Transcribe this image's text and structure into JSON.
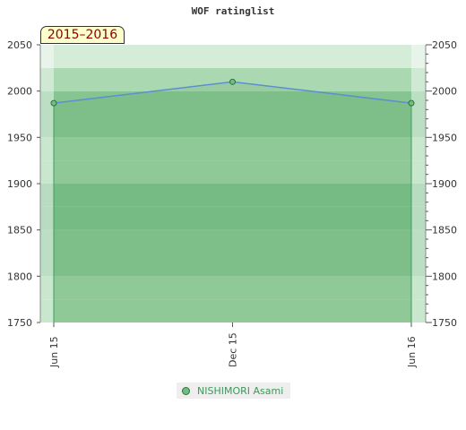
{
  "chart_data": {
    "type": "area",
    "title": "WOF ratinglist",
    "period_label": "2015–2016",
    "x_labels": [
      "Jun 15",
      "Dec 15",
      "Jun 16"
    ],
    "series": [
      {
        "name": "NISHIMORI Asami",
        "values": [
          1987,
          2010,
          1987
        ]
      }
    ],
    "ylim": [
      1750,
      2050
    ],
    "y_ticks": [
      1750,
      1800,
      1850,
      1900,
      1950,
      2000,
      2050
    ],
    "legend_position": "bottom-center",
    "colors": {
      "line": "#5b8fd0",
      "area": "#5fa86a",
      "marker_fill": "#6fbf7f",
      "marker_stroke": "#2f6f3f",
      "band_colors": [
        "#9dd3a5",
        "#86c592",
        "#7cc08b",
        "#a9d8b1",
        "#d5ecd9",
        "#eef7f0"
      ]
    }
  }
}
